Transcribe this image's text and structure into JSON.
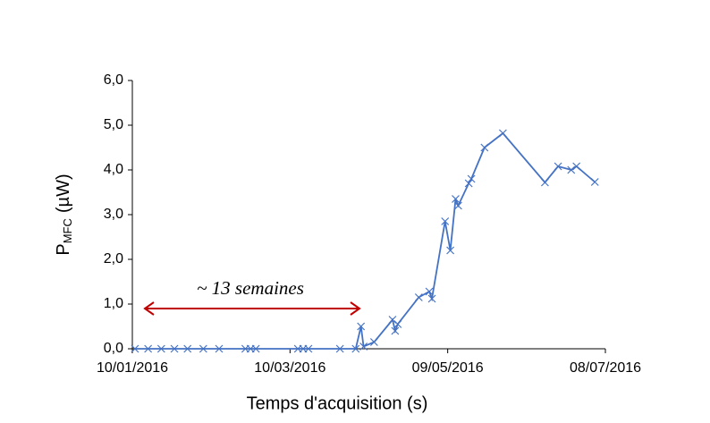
{
  "chart_data": {
    "type": "line",
    "y_label": {
      "main": "P",
      "sub": "MFC",
      "unit": "(µW)"
    },
    "x_label": "Temps d'acquisition (s)",
    "annotation": "~ 13 semaines",
    "annotation_color": "#c00000",
    "series": [
      {
        "color": "#4472c4",
        "x": [
          "2016-01-11",
          "2016-01-16",
          "2016-01-21",
          "2016-01-26",
          "2016-01-31",
          "2016-02-06",
          "2016-02-12",
          "2016-02-22",
          "2016-02-24",
          "2016-02-26",
          "2016-03-13",
          "2016-03-15",
          "2016-03-17",
          "2016-03-29",
          "2016-04-04",
          "2016-04-06",
          "2016-04-07",
          "2016-04-11",
          "2016-04-18",
          "2016-04-19",
          "2016-04-20",
          "2016-04-28",
          "2016-05-02",
          "2016-05-03",
          "2016-05-08",
          "2016-05-10",
          "2016-05-12",
          "2016-05-13",
          "2016-05-17",
          "2016-05-18",
          "2016-05-23",
          "2016-05-30",
          "2016-06-15",
          "2016-06-20",
          "2016-06-25",
          "2016-06-27",
          "2016-07-04"
        ],
        "values": [
          0,
          0,
          0,
          0,
          0,
          0,
          0,
          0,
          0,
          0,
          0,
          0,
          0,
          0,
          0,
          0.5,
          0.05,
          0.15,
          0.65,
          0.4,
          0.55,
          1.15,
          1.28,
          1.12,
          2.85,
          2.2,
          3.35,
          3.2,
          3.7,
          3.8,
          4.5,
          4.82,
          3.72,
          4.08,
          4.0,
          4.08,
          3.73
        ]
      }
    ],
    "xlim": [
      "2016-01-10",
      "2016-07-08"
    ],
    "xticks": [
      {
        "value": "2016-01-10",
        "label": "10/01/2016"
      },
      {
        "value": "2016-03-10",
        "label": "10/03/2016"
      },
      {
        "value": "2016-05-09",
        "label": "09/05/2016"
      },
      {
        "value": "2016-07-08",
        "label": "08/07/2016"
      }
    ],
    "ylim": [
      0,
      6
    ],
    "yticks": [
      {
        "value": 0,
        "label": "0,0"
      },
      {
        "value": 1,
        "label": "1,0"
      },
      {
        "value": 2,
        "label": "2,0"
      },
      {
        "value": 3,
        "label": "3,0"
      },
      {
        "value": 4,
        "label": "4,0"
      },
      {
        "value": 5,
        "label": "5,0"
      },
      {
        "value": 6,
        "label": "6,0"
      }
    ],
    "grid": false
  }
}
